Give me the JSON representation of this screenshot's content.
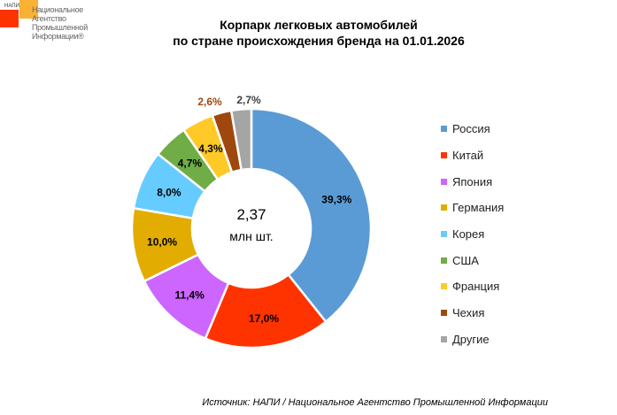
{
  "logo": {
    "small": "НАПИ",
    "text": "Национальное Агентство Промышленной Информации®"
  },
  "chart_data": {
    "type": "donut",
    "title_line1": "Корпарк легковых автомобилей",
    "title_line2": "по стране происхождения бренда на 01.01.2026",
    "center_value": "2,37",
    "center_unit": "млн шт.",
    "legend_position": "right",
    "series": [
      {
        "name": "Россия",
        "value": 39.3,
        "label": "39,3%",
        "color": "#5b9bd5"
      },
      {
        "name": "Китай",
        "value": 17.0,
        "label": "17,0%",
        "color": "#ff3300"
      },
      {
        "name": "Япония",
        "value": 11.4,
        "label": "11,4%",
        "color": "#cc66ff"
      },
      {
        "name": "Германия",
        "value": 10.0,
        "label": "10,0%",
        "color": "#e3ac00"
      },
      {
        "name": "Корея",
        "value": 8.0,
        "label": "8,0%",
        "color": "#66ccff"
      },
      {
        "name": "США",
        "value": 4.7,
        "label": "4,7%",
        "color": "#70ad47"
      },
      {
        "name": "Франция",
        "value": 4.3,
        "label": "4,3%",
        "color": "#ffca28"
      },
      {
        "name": "Чехия",
        "value": 2.6,
        "label": "2,6%",
        "color": "#9e480e",
        "label_color": "#9e480e"
      },
      {
        "name": "Другие",
        "value": 2.7,
        "label": "2,7%",
        "color": "#a5a5a5",
        "label_color": "#404040"
      }
    ]
  },
  "source": "Источник: НАПИ / Национальное Агентство Промышленной Информации"
}
